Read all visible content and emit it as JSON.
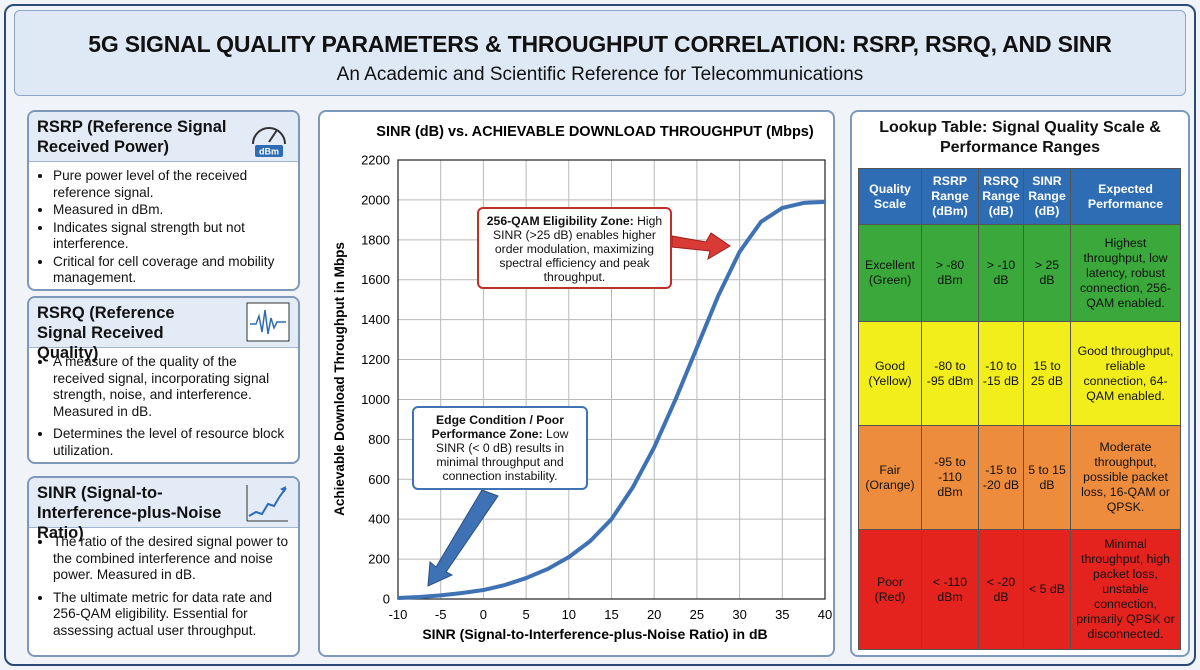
{
  "header": {
    "title": "5G SIGNAL QUALITY PARAMETERS & THROUGHPUT CORRELATION: RSRP, RSRQ, AND SINR",
    "subtitle": "An Academic and Scientific Reference for Telecommunications"
  },
  "panels": [
    {
      "title": "RSRP (Reference Signal Received Power)",
      "icon_label": "dBm",
      "bullets": [
        "Pure power level of the received reference signal.",
        "Measured in dBm.",
        "Indicates signal strength but not interference.",
        "Critical for cell coverage and mobility management."
      ]
    },
    {
      "title": "RSRQ (Reference Signal Received Quality)",
      "bullets": [
        "A measure of the quality of the received signal, incorporating signal strength, noise, and interference. Measured in dB.",
        "Determines the level of resource block utilization."
      ]
    },
    {
      "title": "SINR (Signal-to-Interference-plus-Noise Ratio)",
      "bullets": [
        "The ratio of the desired signal power to the combined interference and noise power. Measured in dB.",
        "The ultimate metric for data rate and 256-QAM eligibility. Essential for assessing actual user throughput."
      ]
    }
  ],
  "chart_data": {
    "type": "line",
    "title": "SINR (dB) vs. ACHIEVABLE DOWNLOAD THROUGHPUT (Mbps)",
    "x_label": "SINR (Signal-to-Interference-plus-Noise Ratio) in dB",
    "y_label": "Achievable Download Throughput in Mbps",
    "x": [
      -10,
      -7.5,
      -5,
      -2.5,
      0,
      2.5,
      5,
      7.5,
      10,
      12.5,
      15,
      17.5,
      20,
      22.5,
      25,
      27.5,
      30,
      32.5,
      35,
      37.5,
      40
    ],
    "values": [
      5,
      10,
      18,
      30,
      45,
      70,
      105,
      150,
      210,
      290,
      400,
      560,
      760,
      1000,
      1260,
      1520,
      1740,
      1890,
      1960,
      1985,
      1990
    ],
    "color": "#3f72b5",
    "xlim": [
      -10,
      40
    ],
    "xticks": [
      -10,
      -5,
      0,
      5,
      10,
      15,
      20,
      25,
      30,
      35,
      40
    ],
    "ylim": [
      0,
      2200
    ],
    "yticks": [
      0,
      200,
      400,
      600,
      800,
      1000,
      1200,
      1400,
      1600,
      1800,
      2000,
      2200
    ],
    "grid": true,
    "annotations": [
      {
        "heading": "256-QAM Eligibility Zone:",
        "text": "High SINR (>25 dB) enables higher order modulation, maximizing spectral efficiency and peak throughput."
      },
      {
        "heading": "Edge Condition / Poor Performance Zone:",
        "text": "Low SINR (< 0 dB) results in minimal throughput and connection instability."
      }
    ]
  },
  "table": {
    "title": "Lookup Table: Signal Quality Scale & Performance Ranges",
    "columns": [
      "Quality Scale",
      "RSRP Range (dBm)",
      "RSRQ Range (dB)",
      "SINR Range (dB)",
      "Expected Performance"
    ],
    "row_colors": [
      "#3aa83a",
      "#f2ee1c",
      "#ee8c3e",
      "#e4231f"
    ],
    "rows": [
      [
        "Excellent (Green)",
        "> -80 dBm",
        "> -10 dB",
        "> 25 dB",
        "Highest throughput, low latency, robust connection, 256-QAM enabled."
      ],
      [
        "Good (Yellow)",
        "-80 to -95 dBm",
        "-10 to -15 dB",
        "15 to 25 dB",
        "Good throughput, reliable connection, 64-QAM enabled."
      ],
      [
        "Fair (Orange)",
        "-95 to -110 dBm",
        "-15 to -20 dB",
        "5 to 15 dB",
        "Moderate throughput, possible packet loss, 16-QAM or QPSK."
      ],
      [
        "Poor (Red)",
        "< -110 dBm",
        "< -20 dB",
        "< 5 dB",
        "Minimal throughput, high packet loss, unstable connection, primarily QPSK or disconnected."
      ]
    ]
  }
}
